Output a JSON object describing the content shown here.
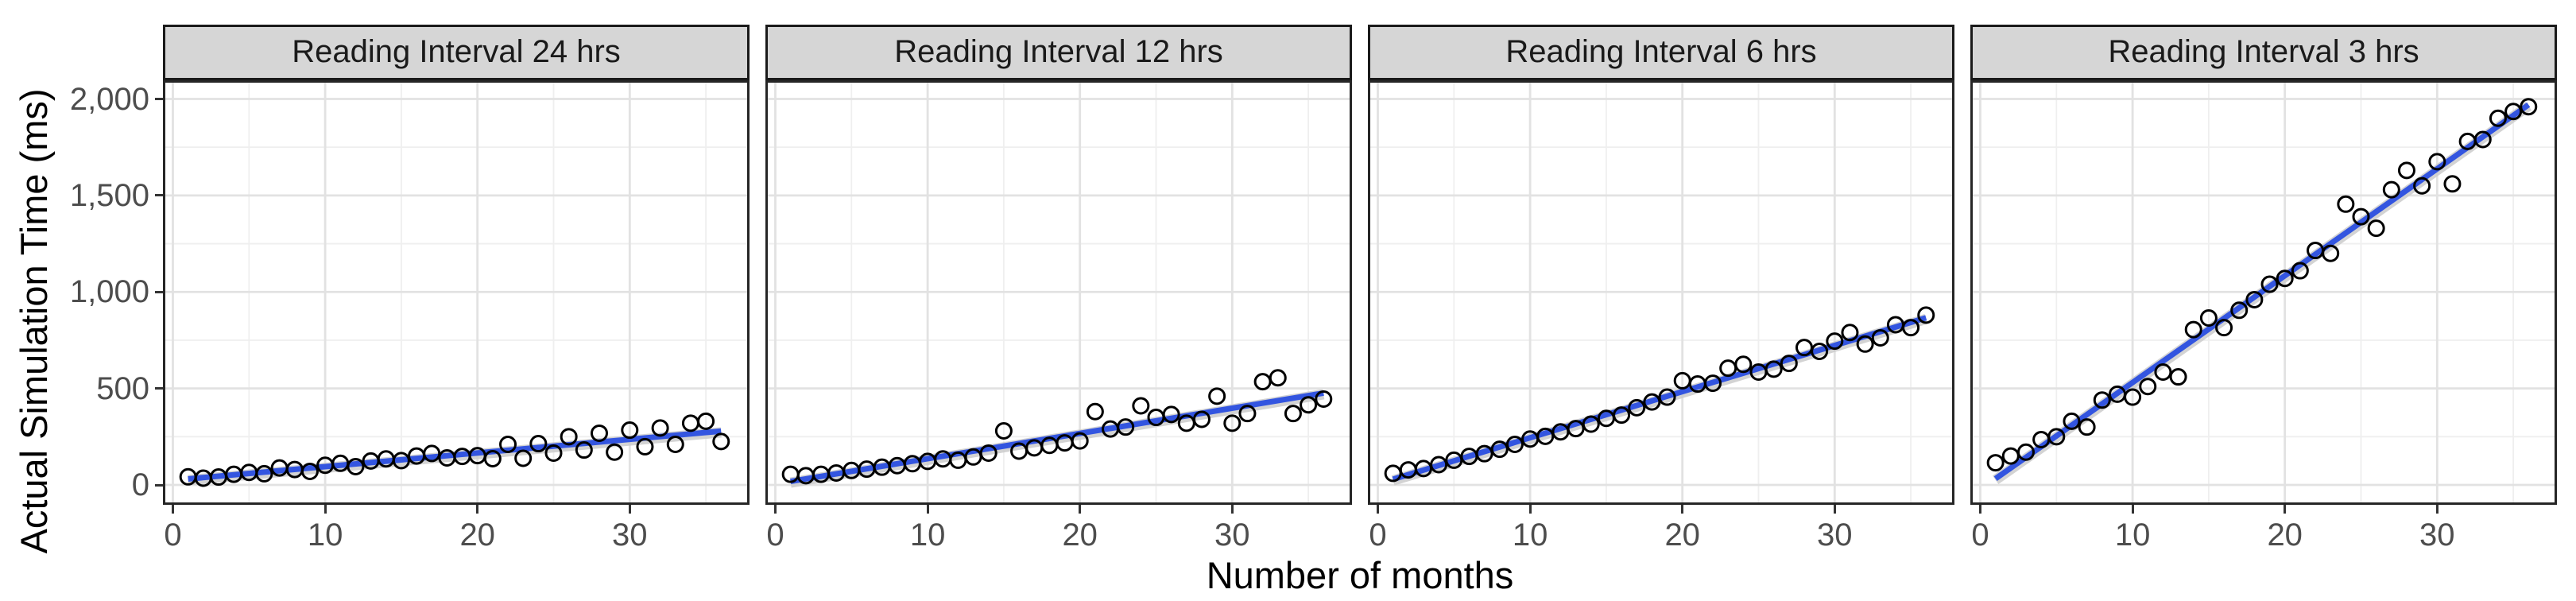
{
  "chart_data": {
    "type": "scatter",
    "title": "",
    "facet_variable": "Reading Interval",
    "x_axis": {
      "title": "Number of months",
      "tick_labels": [
        "0",
        "10",
        "20",
        "30"
      ],
      "tick_values": [
        0,
        10,
        20,
        30
      ],
      "minor_tick_values": [
        5,
        15,
        25,
        35
      ],
      "range": [
        -0.75,
        37.75
      ]
    },
    "y_axis": {
      "title": "Actual Simulation Time (ms)",
      "tick_labels": [
        "0",
        "500",
        "1,000",
        "1,500",
        "2,000"
      ],
      "tick_values": [
        0,
        500,
        1000,
        1500,
        2000
      ],
      "minor_tick_values": [
        250,
        750,
        1250,
        1750
      ],
      "range": [
        -103,
        2096
      ]
    },
    "x_values": [
      1,
      2,
      3,
      4,
      5,
      6,
      7,
      8,
      9,
      10,
      11,
      12,
      13,
      14,
      15,
      16,
      17,
      18,
      19,
      20,
      21,
      22,
      23,
      24,
      25,
      26,
      27,
      28,
      29,
      30,
      31,
      32,
      33,
      34,
      35,
      36
    ],
    "facets": [
      {
        "label": "Reading Interval 24 hrs",
        "values": [
          42,
          35,
          41,
          55,
          65,
          58,
          88,
          80,
          70,
          102,
          112,
          95,
          124,
          135,
          126,
          150,
          163,
          140,
          148,
          152,
          136,
          210,
          138,
          214,
          165,
          250,
          181,
          268,
          170,
          284,
          198,
          295,
          210,
          320,
          330,
          225
        ]
      },
      {
        "label": "Reading Interval 12 hrs",
        "values": [
          55,
          48,
          55,
          62,
          75,
          82,
          92,
          100,
          110,
          122,
          135,
          128,
          145,
          165,
          280,
          175,
          192,
          205,
          218,
          228,
          380,
          290,
          300,
          410,
          350,
          365,
          320,
          340,
          460,
          320,
          370,
          535,
          555,
          370,
          415,
          445
        ]
      },
      {
        "label": "Reading Interval 6 hrs",
        "values": [
          60,
          78,
          85,
          105,
          128,
          148,
          162,
          185,
          210,
          238,
          252,
          275,
          292,
          315,
          345,
          362,
          400,
          430,
          455,
          540,
          523,
          527,
          605,
          625,
          585,
          600,
          630,
          712,
          692,
          745,
          790,
          730,
          762,
          830,
          815,
          880
        ]
      },
      {
        "label": "Reading Interval 3 hrs",
        "values": [
          115,
          150,
          170,
          235,
          250,
          330,
          300,
          440,
          470,
          455,
          510,
          585,
          560,
          805,
          865,
          815,
          905,
          960,
          1040,
          1070,
          1110,
          1215,
          1200,
          1455,
          1390,
          1330,
          1530,
          1630,
          1550,
          1675,
          1560,
          1780,
          1790,
          1900,
          1935,
          1960
        ]
      }
    ],
    "smoother": {
      "type": "linear",
      "span": [
        1,
        36
      ]
    },
    "grid": "major-and-minor",
    "legend": "none",
    "point_shape": "open-circle"
  },
  "style": {
    "point_color": "#000000",
    "smooth_line_color": "#3355E0",
    "ribbon_color": "#CBCBCB",
    "strip_bg": "#D6D6D6",
    "strip_border": "#1A1A1A",
    "panel_border": "#262626",
    "grid_major": "#E2E2E2",
    "grid_minor": "#EFEFEF",
    "axis_text": "#4D4D4D",
    "title_text": "#000000",
    "tick_mark": "#333333",
    "background": "#FFFFFF"
  }
}
